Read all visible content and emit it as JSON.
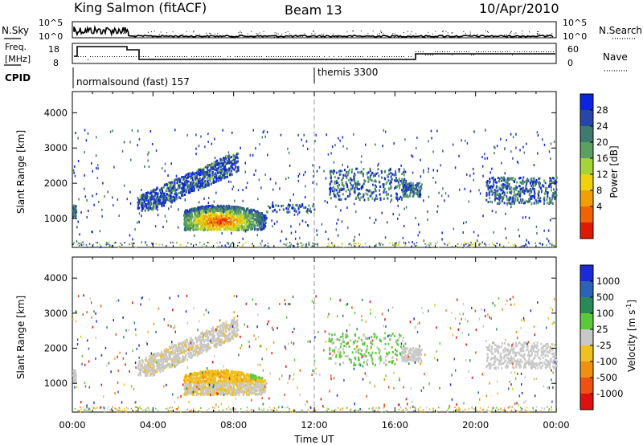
{
  "header": {
    "station": "King Salmon (fitACF)",
    "beam": "Beam 13",
    "date": "10/Apr/2010"
  },
  "panels": {
    "nsky": {
      "label": "N.Sky",
      "ticks": [
        "10^5",
        "10^0"
      ],
      "right_label": "N.Search",
      "right_ticks": [
        "10^5",
        "10^0"
      ]
    },
    "freq": {
      "label1": "Freq.",
      "label2": "[MHz]",
      "ticks": [
        "18",
        "8"
      ],
      "right_label": "Nave",
      "right_ticks": [
        "60",
        "0"
      ]
    },
    "cpid": {
      "label": "CPID",
      "modes": [
        {
          "name": "normalsound (fast) 157"
        },
        {
          "name": "themis 3300"
        }
      ]
    }
  },
  "chart_data": [
    {
      "type": "heatmap",
      "title": "",
      "ylabel": "Slant Range [km]",
      "y_ticks": [
        "4000",
        "3000",
        "2000",
        "1000"
      ],
      "ylim": [
        180,
        4600
      ],
      "xlim": [
        0,
        24
      ],
      "colorbar": {
        "label": "Power [dB]",
        "ticks": [
          "28",
          "24",
          "20",
          "16",
          "12",
          "8",
          "4"
        ],
        "colors": [
          "#0a24e0",
          "#2747a8",
          "#3e7a6e",
          "#5aa060",
          "#a4d43a",
          "#f0d20a",
          "#f0a000",
          "#f06400",
          "#e01a00"
        ]
      },
      "regions": [
        {
          "hours": [
            0.0,
            0.15
          ],
          "range_km": [
            1000,
            1450
          ],
          "power_db": "4-12"
        },
        {
          "hours": [
            3.2,
            8.2
          ],
          "range_km": [
            1250,
            2900
          ],
          "power_db": "4-16"
        },
        {
          "hours": [
            5.5,
            9.6
          ],
          "range_km": [
            650,
            1450
          ],
          "power_db": "12-30"
        },
        {
          "hours": [
            12.7,
            16.5
          ],
          "range_km": [
            1550,
            2450
          ],
          "power_db": "4-12"
        },
        {
          "hours": [
            16.3,
            17.3
          ],
          "range_km": [
            1650,
            2050
          ],
          "power_db": "4-12"
        },
        {
          "hours": [
            20.5,
            24.0
          ],
          "range_km": [
            1450,
            2200
          ],
          "power_db": "4-12"
        }
      ]
    },
    {
      "type": "heatmap",
      "title": "",
      "ylabel": "Slant Range [km]",
      "y_ticks": [
        "4000",
        "3000",
        "2000",
        "1000"
      ],
      "ylim": [
        180,
        4600
      ],
      "xlim": [
        0,
        24
      ],
      "xlabel": "Time UT",
      "x_ticks": [
        "00:00",
        "04:00",
        "08:00",
        "12:00",
        "16:00",
        "20:00",
        "00:00"
      ],
      "colorbar": {
        "label": "Velocity [m s",
        "label_sup": "-1",
        "label_end": "]",
        "ticks": [
          "1000",
          "500",
          "100",
          "25",
          "-25",
          "-100",
          "-500",
          "-1000"
        ],
        "colors": [
          "#1a2ad8",
          "#2c62b8",
          "#2a8a56",
          "#5cc83c",
          "#c8c8c8",
          "#f0c020",
          "#f09010",
          "#f05010",
          "#e01010"
        ]
      },
      "regions": [
        {
          "hours": [
            3.2,
            8.2
          ],
          "range_km": [
            1250,
            2900
          ],
          "velocity": "ground scatter (grey)"
        },
        {
          "hours": [
            5.5,
            9.6
          ],
          "range_km": [
            650,
            1450
          ],
          "velocity": "-25 to -100 m/s"
        },
        {
          "hours": [
            12.7,
            16.5
          ],
          "range_km": [
            1550,
            2450
          ],
          "velocity": "mixed"
        },
        {
          "hours": [
            20.5,
            24.0
          ],
          "range_km": [
            1450,
            2200
          ],
          "velocity": "ground scatter (grey)"
        }
      ]
    }
  ]
}
